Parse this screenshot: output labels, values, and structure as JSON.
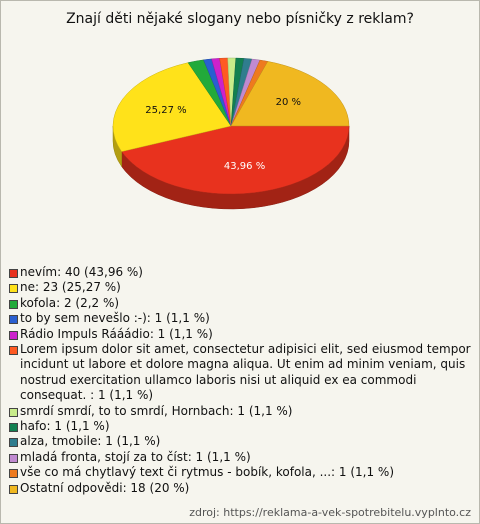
{
  "chart_data": {
    "type": "pie",
    "title": "Znají děti nějaké slogany nebo písničky z reklam?",
    "categories": [
      "nevím: 40 (43,96 %)",
      "ne: 23 (25,27 %)",
      "kofola: 2 (2,2 %)",
      "to by sem nevešlo :-): 1 (1,1 %)",
      "Rádio Impuls Rááádio: 1 (1,1 %)",
      "Lorem ipsum dolor sit amet, consectetur adipisici elit, sed eiusmod tempor incidunt ut labore et dolore magna aliqua. Ut enim ad minim veniam, quis nostrud exercitation ullamco laboris nisi ut aliquid ex ea commodi consequat. : 1 (1,1 %)",
      "smrdí smrdí, to to smrdí, Hornbach: 1 (1,1 %)",
      "hafo: 1 (1,1 %)",
      "alza, tmobile: 1 (1,1 %)",
      "mladá fronta, stojí za to číst: 1 (1,1 %)",
      "vše co má chytlavý text či rytmus - bobík, kofola, ...: 1 (1,1 %)",
      "Ostatní odpovědi: 18 (20 %)"
    ],
    "values": [
      43.96,
      25.27,
      2.2,
      1.1,
      1.1,
      1.1,
      1.1,
      1.1,
      1.1,
      1.1,
      1.1,
      20
    ],
    "value_labels": [
      "43,96 %",
      "25,27 %",
      null,
      null,
      null,
      null,
      null,
      null,
      null,
      null,
      null,
      "20 %"
    ],
    "colors": [
      "#e8321e",
      "#ffe21a",
      "#22aa3a",
      "#2a5fd0",
      "#cc22cc",
      "#ff5a22",
      "#c8ec8a",
      "#128050",
      "#2f7d8e",
      "#c08ad0",
      "#ee7a1e",
      "#f0b820"
    ],
    "source": "zdroj: https://reklama-a-vek-spotrebitelu.vyplnto.cz"
  }
}
